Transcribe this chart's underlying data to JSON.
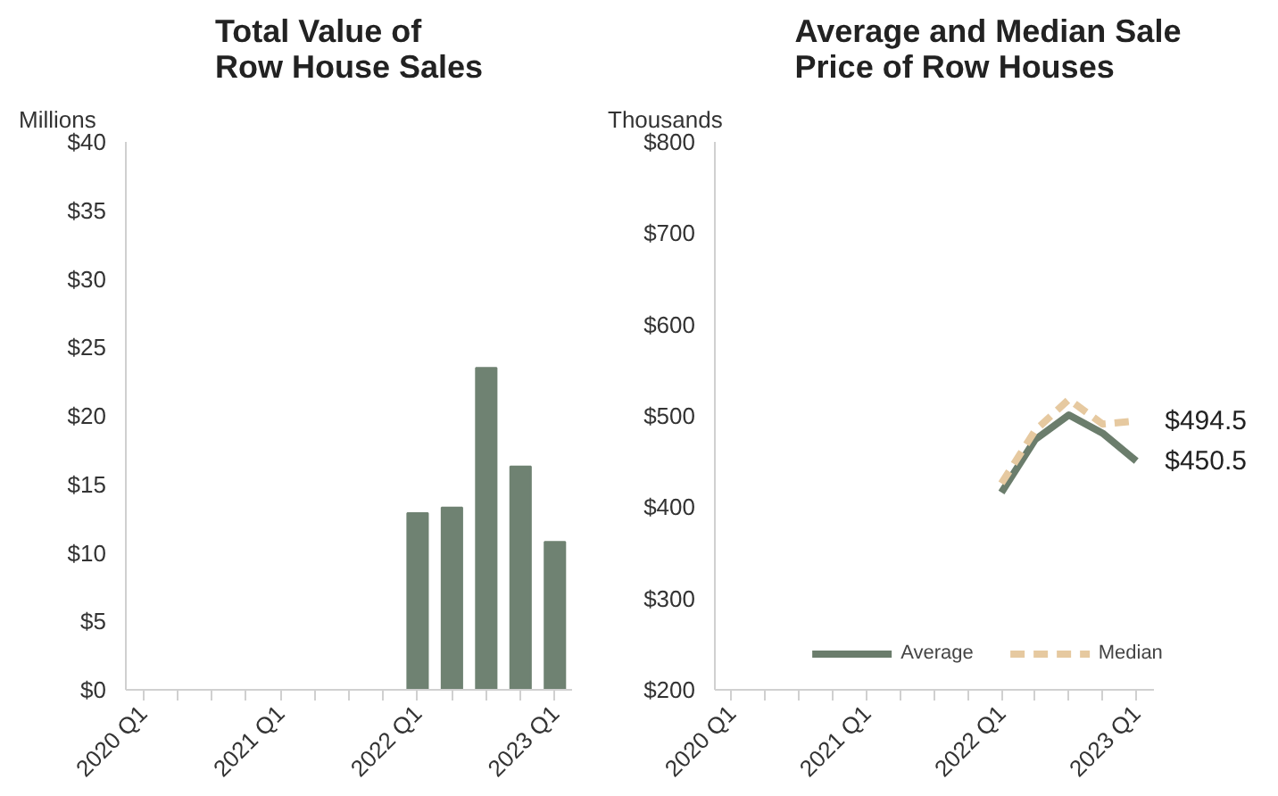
{
  "chart_data": [
    {
      "type": "bar",
      "title": "Total Value of\nRow House Sales",
      "ylabel": "Millions",
      "categories": [
        "2020 Q1",
        null,
        null,
        null,
        "2021 Q1",
        null,
        null,
        null,
        "2022 Q1",
        null,
        null,
        null,
        "2023 Q1"
      ],
      "series": [
        {
          "color": "#6f8272",
          "values": [
            null,
            null,
            null,
            null,
            null,
            null,
            null,
            null,
            12.9,
            13.3,
            23.5,
            16.3,
            10.8
          ]
        }
      ],
      "ylim": [
        0,
        40
      ],
      "yticks": [
        {
          "value": 0,
          "label": "$0"
        },
        {
          "value": 5,
          "label": "$5"
        },
        {
          "value": 10,
          "label": "$10"
        },
        {
          "value": 15,
          "label": "$15"
        },
        {
          "value": 20,
          "label": "$20"
        },
        {
          "value": 25,
          "label": "$25"
        },
        {
          "value": 30,
          "label": "$30"
        },
        {
          "value": 35,
          "label": "$35"
        },
        {
          "value": 40,
          "label": "$40"
        }
      ],
      "grid": false,
      "legend": false
    },
    {
      "type": "line",
      "title": "Average and Median Sale\nPrice of Row Houses",
      "ylabel": "Thousands",
      "categories": [
        "2020 Q1",
        null,
        null,
        null,
        "2021 Q1",
        null,
        null,
        null,
        "2022 Q1",
        null,
        null,
        null,
        "2023 Q1"
      ],
      "series": [
        {
          "name": "Average",
          "color": "#6b7d6c",
          "line_style": "solid",
          "values": [
            null,
            null,
            null,
            null,
            null,
            null,
            null,
            null,
            416,
            474,
            501,
            481,
            450.5
          ],
          "value_labels": [
            null,
            null,
            null,
            null,
            null,
            null,
            null,
            null,
            null,
            null,
            null,
            null,
            "$450.5"
          ]
        },
        {
          "name": "Median",
          "color": "#e6c9a0",
          "line_style": "dashed",
          "values": [
            null,
            null,
            null,
            null,
            null,
            null,
            null,
            null,
            426,
            484,
            518,
            491,
            494.5
          ],
          "value_labels": [
            null,
            null,
            null,
            null,
            null,
            null,
            null,
            null,
            null,
            null,
            null,
            null,
            "$494.5"
          ]
        }
      ],
      "ylim": [
        200,
        800
      ],
      "yticks": [
        {
          "value": 200,
          "label": "$200"
        },
        {
          "value": 300,
          "label": "$300"
        },
        {
          "value": 400,
          "label": "$400"
        },
        {
          "value": 500,
          "label": "$500"
        },
        {
          "value": 600,
          "label": "$600"
        },
        {
          "value": 700,
          "label": "$700"
        },
        {
          "value": 800,
          "label": "$800"
        }
      ],
      "grid": false,
      "legend": "bottom",
      "marker": "none"
    }
  ]
}
